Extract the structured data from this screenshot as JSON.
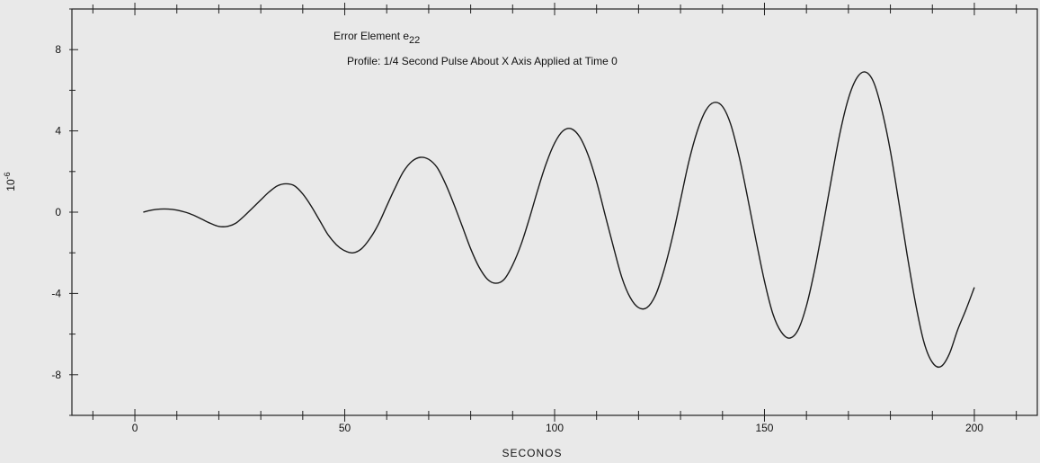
{
  "chart_data": {
    "type": "line",
    "title": "",
    "annotations": {
      "line1": "Error Element e",
      "line1_sub": "22",
      "line2": "Profile:  1/4 Second Pulse About X Axis Applied at Time 0"
    },
    "xlabel": "SECONOS",
    "ylabel": "10",
    "ylabel_exp": "-6",
    "xlim": [
      -15,
      215
    ],
    "ylim": [
      -10,
      10
    ],
    "x_ticks": [
      0,
      50,
      100,
      150,
      200
    ],
    "x_tick_labels": [
      "0",
      "50",
      "100",
      "150",
      "200"
    ],
    "y_ticks": [
      8,
      4,
      0,
      -4,
      -8
    ],
    "y_tick_labels": [
      "8",
      "4",
      "0",
      "-4",
      "-8"
    ],
    "grid": false,
    "series": [
      {
        "x": [
          2,
          4,
          6,
          8,
          10,
          12,
          14,
          16,
          18,
          20,
          22,
          24,
          26,
          28,
          30,
          32,
          34,
          36,
          38,
          40,
          42,
          44,
          46,
          48,
          50,
          52,
          54,
          56,
          58,
          60,
          62,
          64,
          66,
          68,
          70,
          72,
          74,
          76,
          78,
          80,
          82,
          84,
          86,
          88,
          90,
          92,
          94,
          96,
          98,
          100,
          102,
          104,
          106,
          108,
          110,
          112,
          114,
          116,
          118,
          120,
          122,
          124,
          126,
          128,
          130,
          132,
          134,
          136,
          138,
          140,
          142,
          144,
          146,
          148,
          150,
          152,
          154,
          156,
          158,
          160,
          162,
          164,
          166,
          168,
          170,
          172,
          174,
          176,
          178,
          180,
          182,
          184,
          186,
          188,
          190,
          192,
          194,
          196,
          198,
          200
        ],
        "y": [
          0.0,
          0.1,
          0.15,
          0.15,
          0.1,
          0.0,
          -0.15,
          -0.35,
          -0.55,
          -0.7,
          -0.7,
          -0.55,
          -0.2,
          0.2,
          0.6,
          1.0,
          1.3,
          1.4,
          1.3,
          0.9,
          0.3,
          -0.4,
          -1.1,
          -1.6,
          -1.9,
          -2.0,
          -1.8,
          -1.3,
          -0.6,
          0.3,
          1.2,
          2.0,
          2.5,
          2.7,
          2.6,
          2.2,
          1.4,
          0.4,
          -0.7,
          -1.8,
          -2.7,
          -3.3,
          -3.5,
          -3.3,
          -2.6,
          -1.6,
          -0.3,
          1.1,
          2.4,
          3.4,
          4.0,
          4.1,
          3.7,
          2.8,
          1.5,
          -0.1,
          -1.7,
          -3.2,
          -4.2,
          -4.7,
          -4.7,
          -4.1,
          -2.9,
          -1.3,
          0.6,
          2.5,
          4.0,
          5.0,
          5.4,
          5.2,
          4.3,
          2.7,
          0.7,
          -1.4,
          -3.4,
          -5.0,
          -5.9,
          -6.2,
          -5.8,
          -4.6,
          -2.8,
          -0.6,
          1.7,
          3.9,
          5.6,
          6.6,
          6.9,
          6.4,
          5.0,
          3.0,
          0.5,
          -2.1,
          -4.5,
          -6.4,
          -7.4,
          -7.6,
          -7.0,
          -5.8,
          -4.8,
          -3.7
        ]
      }
    ]
  }
}
